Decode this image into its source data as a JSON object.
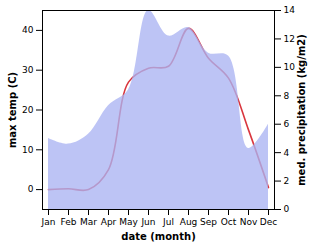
{
  "chart_data": {
    "type": "line",
    "x_label": "date (month)",
    "y_label": "max temp (C)",
    "y2_label": "med. precipitation (kg/m2)",
    "categories": [
      "Jan",
      "Feb",
      "Mar",
      "Apr",
      "May",
      "Jun",
      "Jul",
      "Aug",
      "Sep",
      "Oct",
      "Nov",
      "Dec"
    ],
    "series": [
      {
        "name": "max temp",
        "type": "line",
        "color": "#d9363e",
        "values": [
          0,
          0.2,
          0,
          5,
          27,
          30.5,
          31,
          40.5,
          33,
          28,
          15,
          0.5
        ]
      },
      {
        "name": "med. precipitation",
        "type": "area",
        "axis": "y2",
        "color": "#aab3f2",
        "values": [
          5,
          4.6,
          5.3,
          7.3,
          8.4,
          14,
          12.2,
          12.8,
          11,
          10.8,
          4.3,
          6
        ]
      }
    ],
    "ylim": [
      -5,
      45
    ],
    "yticks": [
      0,
      10,
      20,
      30,
      40
    ],
    "y2lim": [
      0,
      14
    ],
    "y2ticks": [
      0,
      2,
      4,
      6,
      8,
      10,
      12,
      14
    ]
  }
}
